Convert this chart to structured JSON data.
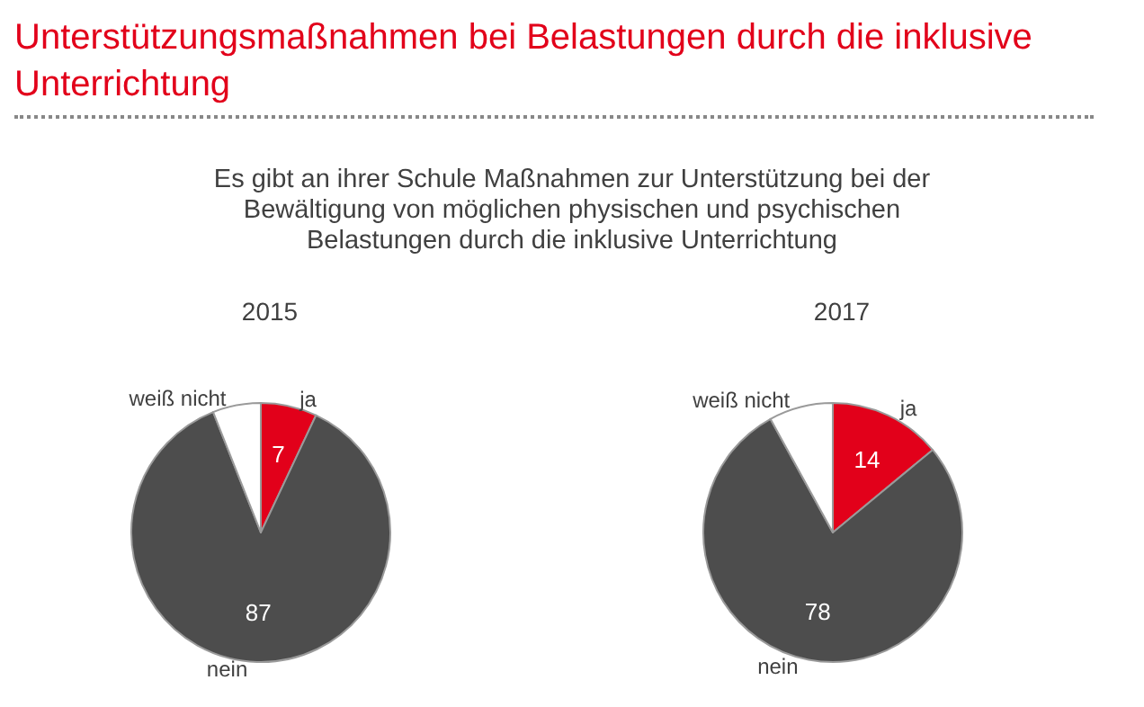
{
  "chart_data": [
    {
      "type": "other",
      "title": "Unterstützungsmaßnahmen bei Belastungen durch die inklusive Unterrichtung",
      "subtitle": "Es gibt an ihrer Schule Maßnahmen zur Unterstützung bei der Bewältigung von möglichen physischen und psychischen Belastungen durch die inklusive Unterrichtung"
    },
    {
      "type": "pie",
      "title": "2015",
      "categories": [
        "ja",
        "nein",
        "weiß nicht"
      ],
      "values": [
        7,
        87,
        6
      ],
      "colors": [
        "#e2001a",
        "#4d4d4d",
        "#ffffff"
      ],
      "value_labels": [
        "7",
        "87",
        null
      ]
    },
    {
      "type": "pie",
      "title": "2017",
      "categories": [
        "ja",
        "nein",
        "weiß nicht"
      ],
      "values": [
        14,
        78,
        8
      ],
      "colors": [
        "#e2001a",
        "#4d4d4d",
        "#ffffff"
      ],
      "value_labels": [
        "14",
        "78",
        null
      ]
    }
  ]
}
